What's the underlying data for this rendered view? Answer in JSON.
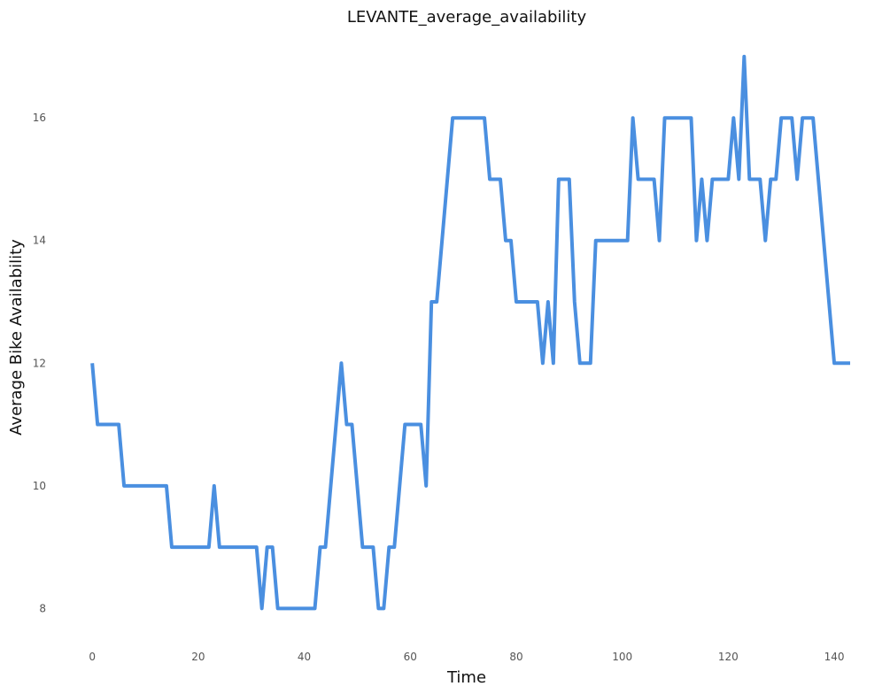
{
  "chart_data": {
    "type": "line",
    "title": "LEVANTE_average_availability",
    "xlabel": "Time",
    "ylabel": "Average Bike Availability",
    "xlim": [
      -2.2,
      143.5
    ],
    "ylim": [
      7.5,
      17.1
    ],
    "xticks": [
      0,
      20,
      40,
      60,
      80,
      100,
      120,
      140
    ],
    "yticks": [
      8,
      10,
      12,
      14,
      16
    ],
    "grid": false,
    "legend": "none",
    "series": [
      {
        "color": "#4a8fe0",
        "x": [
          0,
          1,
          2,
          3,
          4,
          5,
          6,
          7,
          8,
          9,
          10,
          11,
          12,
          13,
          14,
          15,
          16,
          17,
          18,
          19,
          20,
          21,
          22,
          23,
          24,
          25,
          26,
          27,
          28,
          29,
          30,
          31,
          32,
          33,
          34,
          35,
          36,
          37,
          38,
          39,
          40,
          41,
          42,
          43,
          44,
          45,
          46,
          47,
          48,
          49,
          50,
          51,
          52,
          53,
          54,
          55,
          56,
          57,
          58,
          59,
          60,
          61,
          62,
          63,
          64,
          65,
          66,
          67,
          68,
          69,
          70,
          71,
          72,
          73,
          74,
          75,
          76,
          77,
          78,
          79,
          80,
          81,
          82,
          83,
          84,
          85,
          86,
          87,
          88,
          89,
          90,
          91,
          92,
          93,
          94,
          95,
          96,
          97,
          98,
          99,
          100,
          101,
          102,
          103,
          104,
          105,
          106,
          107,
          108,
          109,
          110,
          111,
          112,
          113,
          114,
          115,
          116,
          117,
          118,
          119,
          120,
          121,
          122,
          123,
          124,
          125,
          126,
          127,
          128,
          129,
          130,
          131,
          132,
          133,
          134,
          135,
          136,
          137,
          138,
          139,
          140,
          141,
          142,
          143
        ],
        "y": [
          12,
          11,
          11,
          11,
          11,
          11,
          10,
          10,
          10,
          10,
          10,
          10,
          10,
          10,
          10,
          9,
          9,
          9,
          9,
          9,
          9,
          9,
          9,
          10,
          9,
          9,
          9,
          9,
          9,
          9,
          9,
          9,
          8,
          9,
          9,
          8,
          8,
          8,
          8,
          8,
          8,
          8,
          8,
          9,
          9,
          10,
          11,
          12,
          11,
          11,
          10,
          9,
          9,
          9,
          8,
          8,
          9,
          9,
          10,
          11,
          11,
          11,
          11,
          10,
          13,
          13,
          14,
          15,
          16,
          16,
          16,
          16,
          16,
          16,
          16,
          15,
          15,
          15,
          14,
          14,
          13,
          13,
          13,
          13,
          13,
          12,
          13,
          12,
          15,
          15,
          15,
          13,
          12,
          12,
          12,
          14,
          14,
          14,
          14,
          14,
          14,
          14,
          16,
          15,
          15,
          15,
          15,
          14,
          16,
          16,
          16,
          16,
          16,
          16,
          14,
          15,
          14,
          15,
          15,
          15,
          15,
          16,
          15,
          17,
          15,
          15,
          15,
          14,
          15,
          15,
          16,
          16,
          16,
          15,
          16,
          16,
          16,
          15,
          14,
          13,
          12,
          12,
          12,
          12
        ]
      }
    ]
  }
}
